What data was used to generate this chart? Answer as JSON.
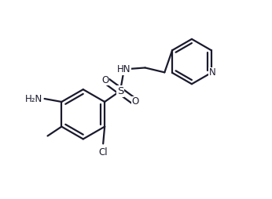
{
  "bg_color": "#ffffff",
  "line_color": "#1a1a2e",
  "line_width": 1.6,
  "font_size": 8.5,
  "figsize": [
    3.46,
    2.54
  ],
  "dpi": 100,
  "xlim": [
    0,
    3.46
  ],
  "ylim": [
    0,
    2.54
  ]
}
